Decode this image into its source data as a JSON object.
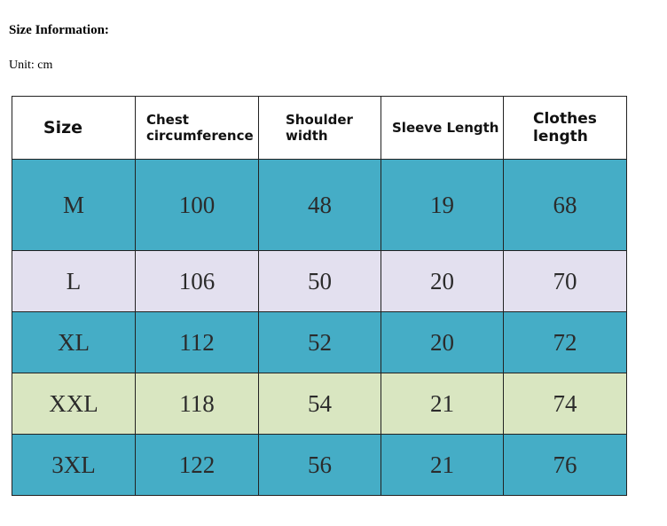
{
  "heading": "Size Information:",
  "unit": "Unit: cm",
  "table": {
    "headers": [
      "Size",
      "Chest circumference",
      "Shoulder width",
      "Sleeve Length",
      "Clothes length"
    ],
    "rows": [
      {
        "cells": [
          "M",
          "100",
          "48",
          "19",
          "68"
        ],
        "color": "#45adc6"
      },
      {
        "cells": [
          "L",
          "106",
          "50",
          "20",
          "70"
        ],
        "color": "#e3e0ef"
      },
      {
        "cells": [
          "XL",
          "112",
          "52",
          "20",
          "72"
        ],
        "color": "#45adc6"
      },
      {
        "cells": [
          "XXL",
          "118",
          "54",
          "21",
          "74"
        ],
        "color": "#d9e6c1"
      },
      {
        "cells": [
          "3XL",
          "122",
          "56",
          "21",
          "76"
        ],
        "color": "#45adc6"
      }
    ]
  }
}
